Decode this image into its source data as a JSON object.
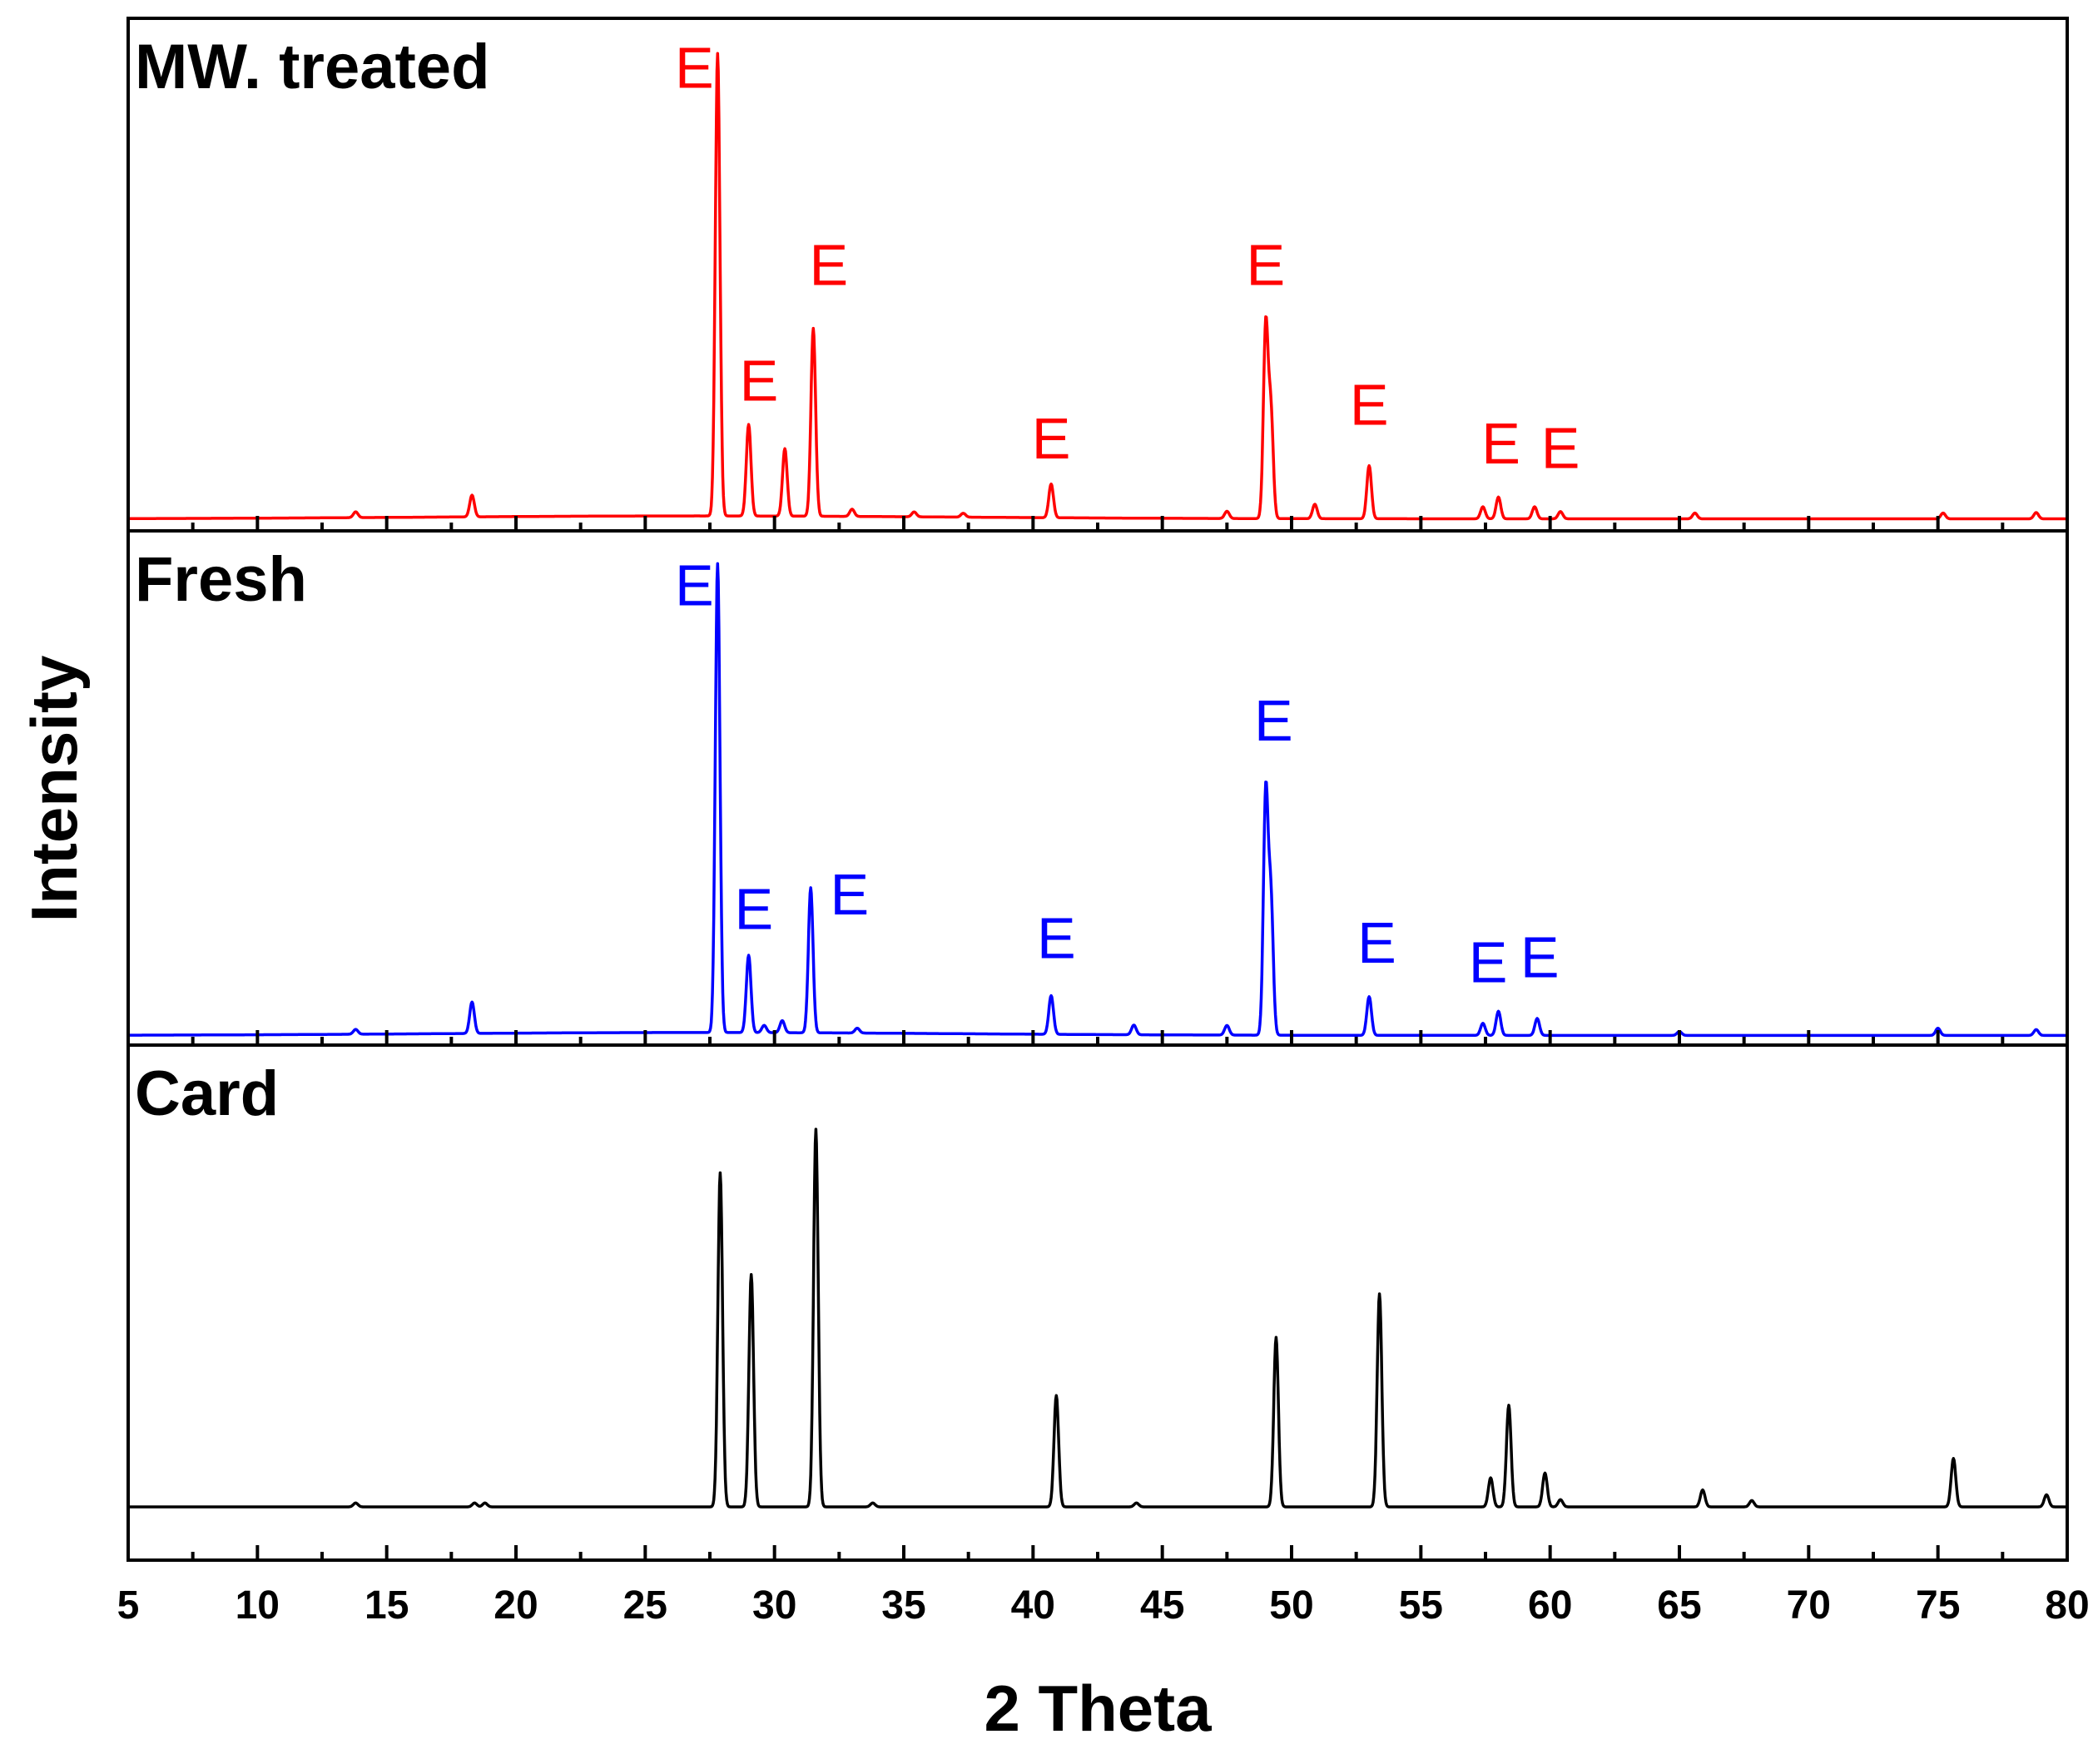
{
  "chart_data": {
    "type": "line",
    "xlabel": "2 Theta",
    "ylabel": "Intensity",
    "xlim": [
      5,
      80
    ],
    "x_ticks": [
      5,
      10,
      15,
      20,
      25,
      30,
      35,
      40,
      45,
      50,
      55,
      60,
      65,
      70,
      75,
      80
    ],
    "x_tick_labels": [
      "5",
      "10",
      "15",
      "20",
      "25",
      "30",
      "35",
      "40",
      "45",
      "50",
      "55",
      "60",
      "65",
      "70",
      "75",
      "80"
    ],
    "panels": [
      {
        "name": "MW. treated",
        "color": "#ff0000",
        "ylim": [
          0,
          100
        ],
        "baseline": 2.5,
        "peaks": [
          {
            "x": 13.8,
            "h": 1.2
          },
          {
            "x": 18.3,
            "h": 4.5
          },
          {
            "x": 27.8,
            "h": 96
          },
          {
            "x": 29.0,
            "h": 19
          },
          {
            "x": 30.4,
            "h": 14
          },
          {
            "x": 31.5,
            "h": 39
          },
          {
            "x": 33.0,
            "h": 1.5
          },
          {
            "x": 35.4,
            "h": 1.0
          },
          {
            "x": 37.3,
            "h": 0.8
          },
          {
            "x": 40.7,
            "h": 7
          },
          {
            "x": 47.5,
            "h": 1.5
          },
          {
            "x": 49.0,
            "h": 40
          },
          {
            "x": 49.2,
            "h": 22
          },
          {
            "x": 50.9,
            "h": 3
          },
          {
            "x": 53.0,
            "h": 11
          },
          {
            "x": 57.4,
            "h": 2.5
          },
          {
            "x": 58.0,
            "h": 4.5
          },
          {
            "x": 59.4,
            "h": 2.5
          },
          {
            "x": 60.4,
            "h": 1.5
          },
          {
            "x": 65.6,
            "h": 1.2
          },
          {
            "x": 75.2,
            "h": 1.2
          },
          {
            "x": 78.8,
            "h": 1.3
          }
        ],
        "annotations": [
          {
            "label": "E",
            "x": 26.9,
            "y": 92
          },
          {
            "label": "E",
            "x": 29.4,
            "y": 27
          },
          {
            "label": "E",
            "x": 32.1,
            "y": 51
          },
          {
            "label": "E",
            "x": 40.7,
            "y": 15
          },
          {
            "label": "E",
            "x": 49.0,
            "y": 51
          },
          {
            "label": "E",
            "x": 53.0,
            "y": 22
          },
          {
            "label": "E",
            "x": 58.1,
            "y": 14
          },
          {
            "label": "E",
            "x": 60.4,
            "y": 13
          }
        ]
      },
      {
        "name": "Fresh",
        "color": "#0000ff",
        "ylim": [
          0,
          100
        ],
        "baseline": 2.0,
        "peaks": [
          {
            "x": 13.8,
            "h": 1.0
          },
          {
            "x": 18.3,
            "h": 6.5
          },
          {
            "x": 27.8,
            "h": 97
          },
          {
            "x": 29.0,
            "h": 16
          },
          {
            "x": 29.6,
            "h": 1.5
          },
          {
            "x": 30.3,
            "h": 2.5
          },
          {
            "x": 31.4,
            "h": 30
          },
          {
            "x": 33.2,
            "h": 1.0
          },
          {
            "x": 40.7,
            "h": 8
          },
          {
            "x": 43.9,
            "h": 2.0
          },
          {
            "x": 47.5,
            "h": 2.0
          },
          {
            "x": 49.0,
            "h": 50
          },
          {
            "x": 49.2,
            "h": 28
          },
          {
            "x": 53.0,
            "h": 8
          },
          {
            "x": 57.4,
            "h": 2.5
          },
          {
            "x": 58.0,
            "h": 5
          },
          {
            "x": 59.5,
            "h": 3.5
          },
          {
            "x": 65.0,
            "h": 0.8
          },
          {
            "x": 75.0,
            "h": 1.5
          },
          {
            "x": 78.8,
            "h": 1.2
          }
        ],
        "annotations": [
          {
            "label": "E",
            "x": 26.9,
            "y": 91
          },
          {
            "label": "E",
            "x": 29.2,
            "y": 24
          },
          {
            "label": "E",
            "x": 32.9,
            "y": 27
          },
          {
            "label": "E",
            "x": 40.9,
            "y": 18
          },
          {
            "label": "E",
            "x": 49.3,
            "y": 63
          },
          {
            "label": "E",
            "x": 53.3,
            "y": 17
          },
          {
            "label": "E",
            "x": 57.6,
            "y": 13
          },
          {
            "label": "E",
            "x": 59.6,
            "y": 14
          }
        ]
      },
      {
        "name": "Card",
        "color": "#000000",
        "ylim": [
          0,
          100
        ],
        "baseline": 11,
        "peaks": [
          {
            "x": 13.8,
            "h": 0.8
          },
          {
            "x": 18.4,
            "h": 0.8
          },
          {
            "x": 18.8,
            "h": 0.8
          },
          {
            "x": 27.9,
            "h": 69
          },
          {
            "x": 29.1,
            "h": 48
          },
          {
            "x": 31.6,
            "h": 78
          },
          {
            "x": 33.8,
            "h": 0.8
          },
          {
            "x": 40.9,
            "h": 23
          },
          {
            "x": 44.0,
            "h": 0.8
          },
          {
            "x": 49.4,
            "h": 35
          },
          {
            "x": 53.4,
            "h": 44
          },
          {
            "x": 57.7,
            "h": 6
          },
          {
            "x": 58.4,
            "h": 21
          },
          {
            "x": 59.8,
            "h": 7
          },
          {
            "x": 60.4,
            "h": 1.5
          },
          {
            "x": 65.9,
            "h": 3.5
          },
          {
            "x": 67.8,
            "h": 1.3
          },
          {
            "x": 75.6,
            "h": 10
          },
          {
            "x": 79.2,
            "h": 2.5
          }
        ],
        "annotations": []
      }
    ]
  }
}
